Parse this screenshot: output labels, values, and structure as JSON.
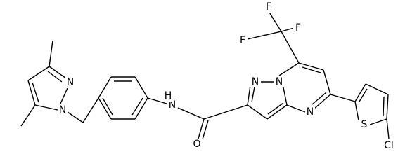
{
  "atoms": [
    "F",
    "F",
    "F",
    "N",
    "N",
    "N",
    "O",
    "N",
    "H",
    "S",
    "Cl",
    "N",
    "N"
  ]
}
